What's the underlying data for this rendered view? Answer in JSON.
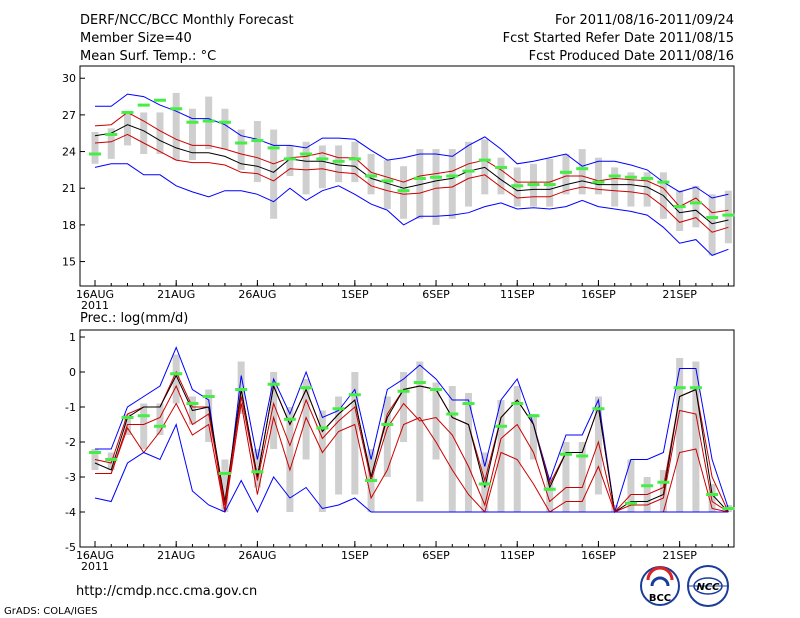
{
  "header": {
    "title": "DERF/NCC/BCC Monthly Forecast",
    "member_size": "Member Size=40",
    "variable": "Mean Surf. Temp.: °C",
    "period": "For 2011/08/16-2011/09/24",
    "start_date": "Fcst Started Refer Date 2011/08/15",
    "produced_date": "Fcst Produced Date 2011/08/16"
  },
  "footer": {
    "url": "http://cmdp.ncc.cma.gov.cn",
    "credit": "GrADS: COLA/IGES",
    "logo_left": "BCC",
    "logo_right": "NCC"
  },
  "colors": {
    "envelope": "#0000ff",
    "ensemble_mean": "#000000",
    "inner_band": "#cc0000",
    "member_bar": "#cfcfcf",
    "marker": "#44ee44"
  },
  "chart_data": [
    {
      "type": "line",
      "title": "Mean Surf. Temp.: °C",
      "ylim": [
        13,
        31
      ],
      "yticks": [
        15,
        18,
        21,
        24,
        27,
        30
      ],
      "x_ticks": [
        {
          "day": 1,
          "label": "16AUG",
          "year": "2011"
        },
        {
          "day": 6,
          "label": "21AUG",
          "year": ""
        },
        {
          "day": 11,
          "label": "26AUG",
          "year": ""
        },
        {
          "day": 17,
          "label": "1SEP",
          "year": ""
        },
        {
          "day": 22,
          "label": "6SEP",
          "year": ""
        },
        {
          "day": 27,
          "label": "11SEP",
          "year": ""
        },
        {
          "day": 32,
          "label": "16SEP",
          "year": ""
        },
        {
          "day": 37,
          "label": "21SEP",
          "year": ""
        }
      ],
      "x": [
        1,
        2,
        3,
        4,
        5,
        6,
        7,
        8,
        9,
        10,
        11,
        12,
        13,
        14,
        15,
        16,
        17,
        18,
        19,
        20,
        21,
        22,
        23,
        24,
        25,
        26,
        27,
        28,
        29,
        30,
        31,
        32,
        33,
        34,
        35,
        36,
        37,
        38,
        39,
        40
      ],
      "series": [
        {
          "name": "max",
          "values": [
            27.7,
            27.7,
            28.7,
            28.5,
            27.8,
            27.3,
            26.7,
            26.7,
            26.2,
            25.3,
            25.0,
            24.5,
            24.5,
            24.3,
            25.1,
            25.1,
            25.0,
            24.1,
            23.3,
            23.5,
            23.8,
            23.8,
            23.6,
            24.5,
            25.2,
            24.2,
            23.0,
            23.2,
            23.5,
            23.8,
            22.8,
            23.2,
            23.2,
            22.9,
            22.5,
            21.5,
            20.7,
            21.1,
            20.2,
            20.5
          ]
        },
        {
          "name": "upper",
          "values": [
            26.1,
            26.2,
            27.2,
            26.5,
            25.7,
            25.0,
            24.5,
            24.5,
            24.2,
            23.8,
            23.5,
            23.0,
            23.5,
            23.6,
            23.9,
            23.5,
            23.5,
            22.3,
            21.9,
            21.5,
            22.0,
            22.2,
            22.4,
            23.0,
            23.3,
            22.5,
            21.5,
            21.5,
            21.5,
            22.0,
            22.0,
            21.6,
            21.8,
            21.7,
            21.6,
            21.0,
            19.5,
            20.2,
            19.0,
            19.2
          ]
        },
        {
          "name": "mean",
          "values": [
            25.3,
            25.5,
            26.2,
            25.7,
            24.9,
            24.3,
            23.9,
            23.9,
            23.6,
            23.0,
            22.8,
            22.3,
            23.4,
            23.2,
            23.2,
            22.9,
            22.8,
            21.8,
            21.4,
            21.0,
            21.3,
            21.6,
            21.8,
            22.4,
            22.7,
            21.7,
            20.8,
            20.9,
            20.9,
            21.3,
            21.6,
            21.3,
            21.3,
            21.3,
            21.1,
            20.4,
            19.0,
            19.2,
            18.1,
            18.4
          ]
        },
        {
          "name": "lower",
          "values": [
            24.7,
            24.8,
            25.4,
            24.7,
            24.0,
            23.3,
            23.1,
            23.1,
            22.9,
            22.3,
            22.2,
            21.6,
            22.6,
            22.5,
            22.6,
            22.3,
            22.2,
            21.2,
            20.8,
            20.5,
            20.6,
            21.0,
            21.1,
            21.8,
            22.1,
            21.1,
            20.2,
            20.3,
            20.3,
            20.8,
            21.1,
            20.9,
            20.8,
            20.7,
            20.5,
            19.5,
            18.2,
            18.6,
            17.4,
            17.8
          ]
        },
        {
          "name": "min",
          "values": [
            22.7,
            23.0,
            23.0,
            22.1,
            22.1,
            21.2,
            20.7,
            20.3,
            20.8,
            20.8,
            20.5,
            19.9,
            21.0,
            20.0,
            20.8,
            21.2,
            20.5,
            19.7,
            19.2,
            18.0,
            18.7,
            18.7,
            18.8,
            19.0,
            19.5,
            19.8,
            19.3,
            19.4,
            19.3,
            19.5,
            20.0,
            19.5,
            19.3,
            19.1,
            18.8,
            17.8,
            16.5,
            16.8,
            15.5,
            16.0
          ]
        }
      ],
      "member_bars": [
        [
          23.0,
          25.6
        ],
        [
          23.4,
          25.9
        ],
        [
          24.5,
          27.3
        ],
        [
          23.8,
          27.2
        ],
        [
          23.8,
          27.2
        ],
        [
          23.3,
          28.8
        ],
        [
          23.3,
          27.5
        ],
        [
          24.2,
          28.5
        ],
        [
          24.2,
          27.5
        ],
        [
          22.5,
          25.8
        ],
        [
          21.5,
          26.5
        ],
        [
          18.5,
          25.8
        ],
        [
          22.0,
          24.5
        ],
        [
          20.5,
          24.8
        ],
        [
          21.0,
          24.5
        ],
        [
          21.5,
          24.5
        ],
        [
          21.5,
          24.8
        ],
        [
          20.5,
          23.8
        ],
        [
          19.3,
          23.3
        ],
        [
          18.5,
          22.8
        ],
        [
          18.5,
          24.2
        ],
        [
          18.0,
          24.2
        ],
        [
          18.5,
          24.2
        ],
        [
          19.5,
          24.8
        ],
        [
          20.5,
          25.0
        ],
        [
          20.5,
          23.5
        ],
        [
          19.5,
          22.7
        ],
        [
          19.5,
          23.0
        ],
        [
          19.5,
          23.4
        ],
        [
          20.5,
          23.8
        ],
        [
          20.5,
          24.2
        ],
        [
          20.5,
          23.5
        ],
        [
          19.5,
          22.7
        ],
        [
          19.5,
          22.3
        ],
        [
          19.5,
          22.3
        ],
        [
          18.5,
          22.3
        ],
        [
          17.5,
          20.8
        ],
        [
          17.8,
          21.2
        ],
        [
          15.5,
          20.5
        ],
        [
          16.5,
          20.8
        ]
      ],
      "markers": [
        23.8,
        25.4,
        27.2,
        27.8,
        28.2,
        27.5,
        26.4,
        26.5,
        26.4,
        24.7,
        24.9,
        24.3,
        23.4,
        23.8,
        23.4,
        23.2,
        23.4,
        22.0,
        21.6,
        20.8,
        21.8,
        21.9,
        22.0,
        22.4,
        23.3,
        22.7,
        21.2,
        21.3,
        21.3,
        22.3,
        22.6,
        21.5,
        22.0,
        21.9,
        21.8,
        21.5,
        19.5,
        19.8,
        18.6,
        18.8
      ]
    },
    {
      "type": "line",
      "title": "Prec.: log(mm/d)",
      "ylim": [
        -5,
        1.2
      ],
      "yticks": [
        -5,
        -4,
        -3,
        -2,
        -1,
        0,
        1
      ],
      "x_ticks": [
        {
          "day": 1,
          "label": "16AUG",
          "year": "2011"
        },
        {
          "day": 6,
          "label": "21AUG",
          "year": ""
        },
        {
          "day": 11,
          "label": "26AUG",
          "year": ""
        },
        {
          "day": 17,
          "label": "1SEP",
          "year": ""
        },
        {
          "day": 22,
          "label": "6SEP",
          "year": ""
        },
        {
          "day": 27,
          "label": "11SEP",
          "year": ""
        },
        {
          "day": 32,
          "label": "16SEP",
          "year": ""
        },
        {
          "day": 37,
          "label": "21SEP",
          "year": ""
        }
      ],
      "x": [
        1,
        2,
        3,
        4,
        5,
        6,
        7,
        8,
        9,
        10,
        11,
        12,
        13,
        14,
        15,
        16,
        17,
        18,
        19,
        20,
        21,
        22,
        23,
        24,
        25,
        26,
        27,
        28,
        29,
        30,
        31,
        32,
        33,
        34,
        35,
        36,
        37,
        38,
        39,
        40
      ],
      "series": [
        {
          "name": "max",
          "values": [
            -2.2,
            -2.2,
            -1.0,
            -0.7,
            -0.4,
            0.7,
            -0.5,
            -0.8,
            -4.0,
            -0.1,
            -2.5,
            -0.2,
            -1.2,
            0.0,
            -1.3,
            -1.1,
            -0.5,
            -2.5,
            -0.5,
            -0.2,
            0.2,
            -0.2,
            -0.8,
            -0.8,
            -2.7,
            -0.8,
            -0.2,
            -1.5,
            -3.1,
            -1.8,
            -1.8,
            -0.8,
            -4.0,
            -2.5,
            -2.5,
            -2.3,
            0.1,
            0.1,
            -2.5,
            -3.9
          ]
        },
        {
          "name": "upper",
          "values": [
            -2.5,
            -2.6,
            -1.2,
            -1.0,
            -1.0,
            0.0,
            -1.0,
            -1.0,
            -4.0,
            -0.5,
            -3.0,
            -0.4,
            -1.5,
            -0.5,
            -1.7,
            -1.2,
            -0.8,
            -3.0,
            -1.2,
            -0.5,
            -0.4,
            -0.5,
            -1.3,
            -1.5,
            -3.1,
            -1.3,
            -0.8,
            -1.5,
            -3.2,
            -2.3,
            -2.3,
            -1.0,
            -4.0,
            -3.5,
            -3.5,
            -3.3,
            -0.7,
            -0.5,
            -3.0,
            -4.0
          ]
        },
        {
          "name": "mean",
          "values": [
            -2.6,
            -2.8,
            -1.3,
            -1.0,
            -1.0,
            -0.1,
            -1.1,
            -1.0,
            -3.7,
            -0.5,
            -3.0,
            -0.4,
            -1.5,
            -0.5,
            -1.7,
            -1.2,
            -0.8,
            -3.0,
            -1.3,
            -0.5,
            -0.4,
            -0.5,
            -1.3,
            -1.5,
            -3.3,
            -1.3,
            -0.8,
            -1.5,
            -3.3,
            -2.3,
            -2.3,
            -1.0,
            -4.0,
            -3.7,
            -3.7,
            -3.5,
            -0.7,
            -0.5,
            -3.5,
            -4.0
          ]
        },
        {
          "name": "lower",
          "values": [
            -2.9,
            -2.9,
            -1.5,
            -1.5,
            -1.3,
            -0.4,
            -1.5,
            -1.2,
            -3.8,
            -0.7,
            -3.1,
            -0.9,
            -2.1,
            -0.8,
            -1.9,
            -1.4,
            -1.0,
            -3.1,
            -1.6,
            -0.9,
            -1.4,
            -1.3,
            -1.8,
            -2.7,
            -3.8,
            -1.9,
            -1.5,
            -2.3,
            -3.7,
            -3.3,
            -3.3,
            -2.0,
            -4.0,
            -3.8,
            -3.8,
            -3.6,
            -1.1,
            -1.2,
            -3.7,
            -4.0
          ]
        },
        {
          "name": "lower2",
          "values": [
            -2.9,
            -2.9,
            -1.6,
            -2.3,
            -1.7,
            -0.9,
            -1.8,
            -1.5,
            -4.0,
            -0.9,
            -3.5,
            -1.3,
            -2.8,
            -1.3,
            -2.3,
            -1.7,
            -1.5,
            -3.6,
            -2.8,
            -1.5,
            -1.3,
            -2.0,
            -2.8,
            -3.5,
            -4.0,
            -2.3,
            -2.5,
            -3.2,
            -4.0,
            -3.7,
            -3.7,
            -2.7,
            -4.0,
            -4.0,
            -4.0,
            -4.0,
            -2.3,
            -2.2,
            -3.9,
            -4.0
          ]
        },
        {
          "name": "min",
          "values": [
            -3.6,
            -3.7,
            -2.6,
            -2.3,
            -2.5,
            -1.5,
            -3.4,
            -3.8,
            -4.0,
            -3.1,
            -4.0,
            -3.0,
            -3.6,
            -3.3,
            -3.9,
            -3.8,
            -3.6,
            -4.0,
            -4.0,
            -4.0,
            -4.0,
            -4.0,
            -4.0,
            -4.0,
            -4.0,
            -4.0,
            -4.0,
            -4.0,
            -4.0,
            -4.0,
            -4.0,
            -4.0,
            -4.0,
            -4.0,
            -4.0,
            -4.0,
            -4.0,
            -4.0,
            -4.0,
            -4.0
          ]
        }
      ],
      "member_bars": [
        [
          -2.8,
          -2.2
        ],
        [
          -2.8,
          -2.3
        ],
        [
          -1.8,
          -1.2
        ],
        [
          -2.2,
          -0.9
        ],
        [
          -1.8,
          -0.9
        ],
        [
          -0.9,
          0.5
        ],
        [
          -1.5,
          -0.7
        ],
        [
          -2.0,
          -0.5
        ],
        [
          -4.0,
          -2.5
        ],
        [
          -1.2,
          0.3
        ],
        [
          -3.3,
          -2.2
        ],
        [
          -2.2,
          0.0
        ],
        [
          -4.0,
          -1.0
        ],
        [
          -2.5,
          -0.2
        ],
        [
          -4.0,
          -1.1
        ],
        [
          -3.5,
          -0.7
        ],
        [
          -3.5,
          0.0
        ],
        [
          -4.0,
          -2.2
        ],
        [
          -3.0,
          -0.7
        ],
        [
          -2.0,
          0.0
        ],
        [
          -3.7,
          0.3
        ],
        [
          -2.5,
          -0.3
        ],
        [
          -4.0,
          -0.4
        ],
        [
          -4.0,
          -0.6
        ],
        [
          -4.0,
          -2.3
        ],
        [
          -4.0,
          -0.8
        ],
        [
          -4.0,
          -0.4
        ],
        [
          -2.5,
          -1.2
        ],
        [
          -4.0,
          -3.0
        ],
        [
          -4.0,
          -2.0
        ],
        [
          -4.0,
          -2.0
        ],
        [
          -3.5,
          -0.7
        ],
        [
          -4.0,
          -3.8
        ],
        [
          -4.0,
          -2.5
        ],
        [
          -4.0,
          -3.0
        ],
        [
          -4.0,
          -2.8
        ],
        [
          -4.0,
          0.4
        ],
        [
          -4.0,
          0.3
        ],
        [
          -4.0,
          -3.2
        ],
        [
          -4.0,
          -3.8
        ]
      ],
      "markers": [
        -2.3,
        -2.5,
        -1.3,
        -1.25,
        -1.55,
        -0.05,
        -0.9,
        -0.7,
        -2.9,
        -0.5,
        -2.85,
        -0.35,
        -1.35,
        -0.45,
        -1.6,
        -1.05,
        -0.65,
        -3.1,
        -1.5,
        -0.55,
        -0.3,
        -0.5,
        -1.2,
        -0.9,
        -3.2,
        -1.55,
        -0.9,
        -1.25,
        -3.35,
        -2.35,
        -2.4,
        -1.05,
        null,
        -3.75,
        -3.25,
        -3.15,
        -0.45,
        -0.45,
        -3.5,
        -3.9
      ]
    }
  ]
}
